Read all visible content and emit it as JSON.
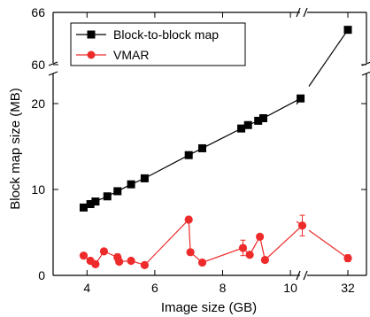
{
  "chart_data": {
    "type": "line",
    "title": "",
    "xlabel": "Image size (GB)",
    "ylabel": "Block map size (MB)",
    "x_axis_break": {
      "between": [
        10.2,
        32
      ]
    },
    "y_axis_break": {
      "between": [
        25,
        60
      ]
    },
    "x_ticks": [
      4,
      6,
      8,
      10,
      32
    ],
    "y_ticks": [
      0,
      10,
      20,
      60,
      66
    ],
    "legend_position": "top-left",
    "grid": false,
    "series": [
      {
        "name": "Block-to-block map",
        "color": "#000000",
        "marker": "square",
        "points": [
          {
            "x": 3.9,
            "y": 7.9
          },
          {
            "x": 4.1,
            "y": 8.3
          },
          {
            "x": 4.25,
            "y": 8.6
          },
          {
            "x": 4.6,
            "y": 9.2
          },
          {
            "x": 4.9,
            "y": 9.8
          },
          {
            "x": 5.3,
            "y": 10.6
          },
          {
            "x": 5.7,
            "y": 11.3
          },
          {
            "x": 7.0,
            "y": 14.0
          },
          {
            "x": 7.4,
            "y": 14.8
          },
          {
            "x": 8.55,
            "y": 17.1
          },
          {
            "x": 8.75,
            "y": 17.5
          },
          {
            "x": 9.05,
            "y": 18.0
          },
          {
            "x": 9.2,
            "y": 18.3
          },
          {
            "x": 10.3,
            "y": 20.6
          },
          {
            "x": 32,
            "y": 64.0
          }
        ]
      },
      {
        "name": "VMAR",
        "color": "#ee2b2b",
        "marker": "circle",
        "points": [
          {
            "x": 3.9,
            "y": 2.3,
            "err": 0
          },
          {
            "x": 4.1,
            "y": 1.7,
            "err": 0
          },
          {
            "x": 4.25,
            "y": 1.3,
            "err": 0
          },
          {
            "x": 4.5,
            "y": 2.8,
            "err": 0
          },
          {
            "x": 4.9,
            "y": 2.1,
            "err": 0.4
          },
          {
            "x": 4.95,
            "y": 1.6,
            "err": 0
          },
          {
            "x": 5.3,
            "y": 1.7,
            "err": 0
          },
          {
            "x": 5.7,
            "y": 1.2,
            "err": 0
          },
          {
            "x": 7.0,
            "y": 6.5,
            "err": 0
          },
          {
            "x": 7.05,
            "y": 2.7,
            "err": 0
          },
          {
            "x": 7.4,
            "y": 1.5,
            "err": 0
          },
          {
            "x": 8.6,
            "y": 3.2,
            "err": 0.9
          },
          {
            "x": 8.8,
            "y": 2.4,
            "err": 0
          },
          {
            "x": 9.1,
            "y": 4.5,
            "err": 0
          },
          {
            "x": 9.25,
            "y": 1.8,
            "err": 0
          },
          {
            "x": 10.35,
            "y": 5.8,
            "err": 1.2
          },
          {
            "x": 32,
            "y": 2.0,
            "err": 0.4
          }
        ]
      }
    ]
  }
}
